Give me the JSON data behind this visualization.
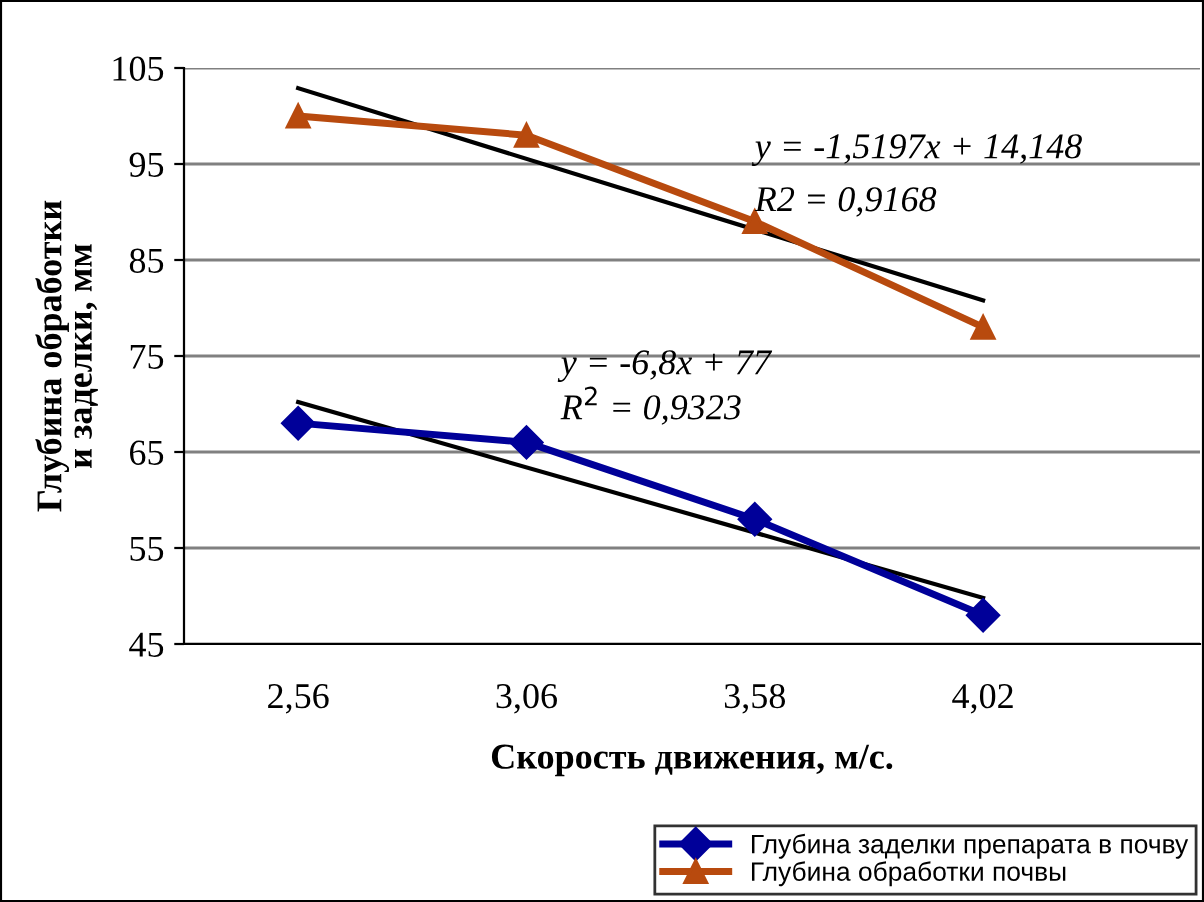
{
  "chart_data": {
    "type": "line",
    "xlabel": "Скорость движения, м/с.",
    "ylabel": "Глубина обработки\nи заделки, мм",
    "categories": [
      "2,56",
      "3,06",
      "3,58",
      "4,02"
    ],
    "series": [
      {
        "name": "Глубина заделки препарата в почву",
        "color": "#000099",
        "marker": "diamond",
        "values": [
          68,
          66,
          58,
          48
        ]
      },
      {
        "name": "Глубина обработки почвы",
        "color": "#b84a0e",
        "marker": "triangle",
        "values": [
          100,
          98,
          89,
          78
        ]
      },
      {
        "type": "line",
        "color": "#000000",
        "marker": "none",
        "x": [
          "2,56",
          "4,02"
        ],
        "values": [
          102.9,
          80.8
        ]
      },
      {
        "type": "line",
        "color": "#000000",
        "marker": "none",
        "x": [
          "2,56",
          "4,02"
        ],
        "values": [
          70.2,
          49.8
        ]
      }
    ],
    "ylim": [
      45,
      105
    ],
    "yticks": [
      45,
      55,
      65,
      75,
      85,
      95,
      105
    ],
    "grid": "y",
    "legend": "bottom right",
    "annotations": [
      "y = -1,5197x + 14,148",
      "R2 = 0,9168",
      "y = -6,8x + 77",
      "R$^{2}$ = 0,9323"
    ]
  }
}
